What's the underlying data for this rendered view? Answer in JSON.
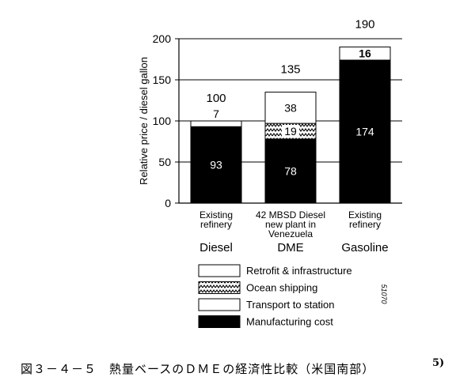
{
  "chart_data": {
    "type": "bar",
    "stacked": true,
    "ylabel": "Relative price / diesel gallon",
    "ylim": [
      0,
      200
    ],
    "yticks": [
      0,
      50,
      100,
      150,
      200
    ],
    "grid": true,
    "categories": [
      {
        "name": "Diesel",
        "note": [
          "Existing",
          "refinery"
        ],
        "total": "100"
      },
      {
        "name": "DME",
        "note": [
          "42 MBSD Diesel",
          "new plant in",
          "Venezuela"
        ],
        "total": "135"
      },
      {
        "name": "Gasoline",
        "note": [
          "Existing",
          "refinery"
        ],
        "total": "190"
      }
    ],
    "series": [
      {
        "name": "Manufacturing cost",
        "style": "solid-black",
        "values": [
          93,
          78,
          174
        ]
      },
      {
        "name": "Transport to station",
        "style": "white",
        "values": [
          7,
          null,
          16
        ]
      },
      {
        "name": "Ocean shipping",
        "style": "zigzag-hatch",
        "values": [
          null,
          19,
          null
        ]
      },
      {
        "name": "Retrofit & infrastructure",
        "style": "white",
        "values": [
          null,
          38,
          null
        ]
      }
    ],
    "legend": {
      "placement": "bottom-center",
      "order": [
        "Retrofit & infrastructure",
        "Ocean shipping",
        "Transport to station",
        "Manufacturing cost"
      ]
    },
    "side_code": "51070"
  },
  "caption": {
    "text": "図３－４－５　熱量ベースのＤＭＥの経済性比較（米国南部）",
    "ref": "5)"
  },
  "colors": {
    "ink": "#000000",
    "paper": "#ffffff"
  }
}
